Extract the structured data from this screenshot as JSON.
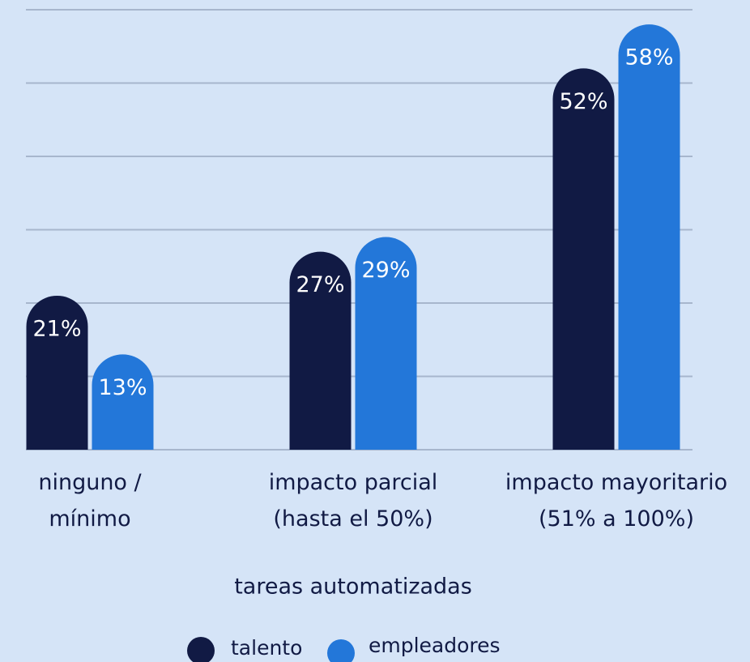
{
  "chart_data": {
    "type": "bar",
    "x_label": "tareas automatizadas",
    "categories": [
      "ninguno /\nmínimo",
      "impacto parcial\n(hasta el 50%)",
      "impacto mayoritario\n(51% a 100%)"
    ],
    "series": [
      {
        "name": "talento",
        "color": "#111a44",
        "values": [
          21,
          27,
          52
        ],
        "value_labels": [
          "21%",
          "27%",
          "52%"
        ]
      },
      {
        "name": "empleadores",
        "color": "#2377d9",
        "values": [
          13,
          29,
          58
        ],
        "value_labels": [
          "13%",
          "29%",
          "58%"
        ]
      }
    ],
    "ylim": [
      0,
      60
    ],
    "yticks": [
      0,
      10,
      20,
      30,
      40,
      50,
      60
    ],
    "grid": true,
    "legend": "bottom"
  }
}
